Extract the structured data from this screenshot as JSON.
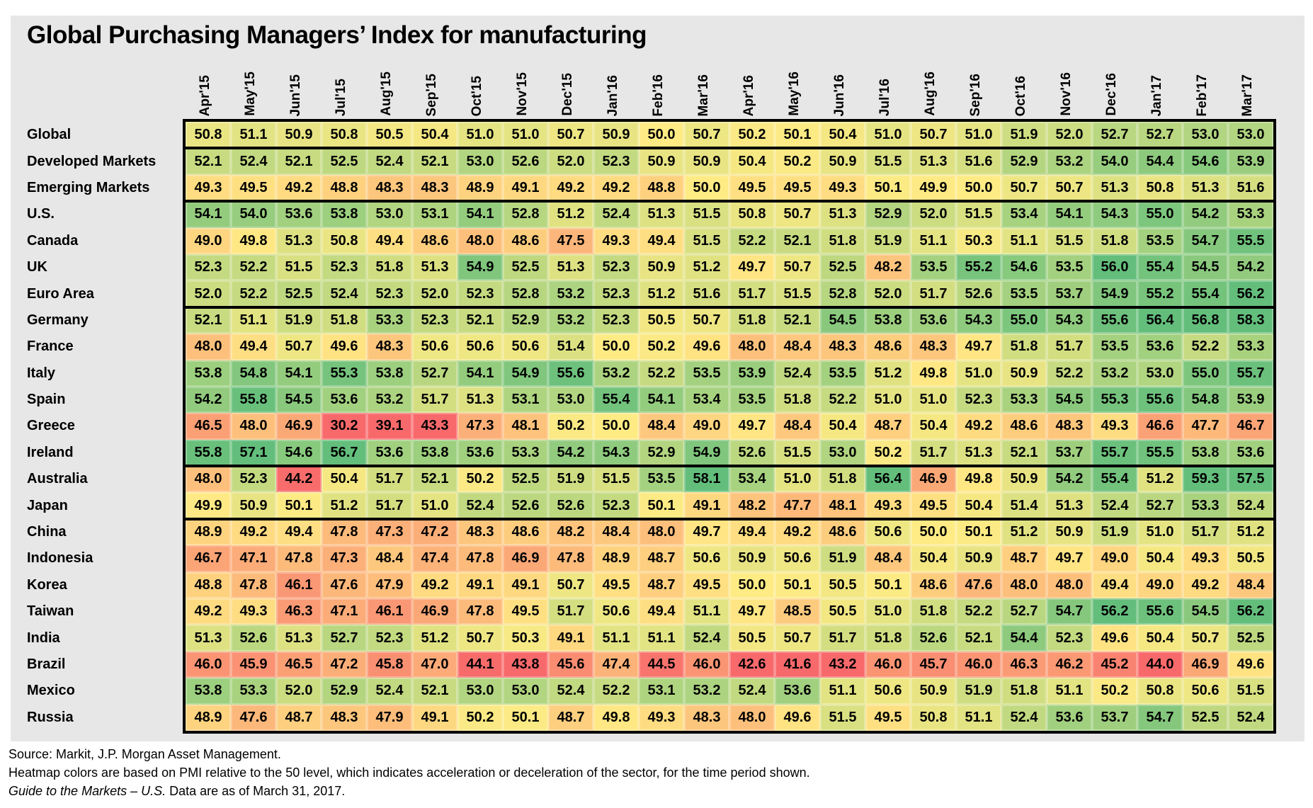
{
  "title": "Global Purchasing Managers’ Index for manufacturing",
  "chart_data": {
    "type": "heatmap",
    "columns": [
      "Apr'15",
      "May'15",
      "Jun'15",
      "Jul'15",
      "Aug'15",
      "Sep'15",
      "Oct'15",
      "Nov'15",
      "Dec'15",
      "Jan'16",
      "Feb'16",
      "Mar'16",
      "Apr'16",
      "May'16",
      "Jun'16",
      "Jul'16",
      "Aug'16",
      "Sep'16",
      "Oct'16",
      "Nov'16",
      "Dec'16",
      "Jan'17",
      "Feb'17",
      "Mar'17"
    ],
    "rows": [
      {
        "label": "Global",
        "values": [
          50.8,
          51.1,
          50.9,
          50.8,
          50.5,
          50.4,
          51.0,
          51.0,
          50.7,
          50.9,
          50.0,
          50.7,
          50.2,
          50.1,
          50.4,
          51.0,
          50.7,
          51.0,
          51.9,
          52.0,
          52.7,
          52.7,
          53.0,
          53.0
        ]
      },
      {
        "label": "Developed Markets",
        "values": [
          52.1,
          52.4,
          52.1,
          52.5,
          52.4,
          52.1,
          53.0,
          52.6,
          52.0,
          52.3,
          50.9,
          50.9,
          50.4,
          50.2,
          50.9,
          51.5,
          51.3,
          51.6,
          52.9,
          53.2,
          54.0,
          54.4,
          54.6,
          53.9
        ]
      },
      {
        "label": "Emerging Markets",
        "values": [
          49.3,
          49.5,
          49.2,
          48.8,
          48.3,
          48.3,
          48.9,
          49.1,
          49.2,
          49.2,
          48.8,
          50.0,
          49.5,
          49.5,
          49.3,
          50.1,
          49.9,
          50.0,
          50.7,
          50.7,
          51.3,
          50.8,
          51.3,
          51.6
        ]
      },
      {
        "label": "U.S.",
        "values": [
          54.1,
          54.0,
          53.6,
          53.8,
          53.0,
          53.1,
          54.1,
          52.8,
          51.2,
          52.4,
          51.3,
          51.5,
          50.8,
          50.7,
          51.3,
          52.9,
          52.0,
          51.5,
          53.4,
          54.1,
          54.3,
          55.0,
          54.2,
          53.3
        ]
      },
      {
        "label": "Canada",
        "values": [
          49.0,
          49.8,
          51.3,
          50.8,
          49.4,
          48.6,
          48.0,
          48.6,
          47.5,
          49.3,
          49.4,
          51.5,
          52.2,
          52.1,
          51.8,
          51.9,
          51.1,
          50.3,
          51.1,
          51.5,
          51.8,
          53.5,
          54.7,
          55.5
        ]
      },
      {
        "label": "UK",
        "values": [
          52.3,
          52.2,
          51.5,
          52.3,
          51.8,
          51.3,
          54.9,
          52.5,
          51.3,
          52.3,
          50.9,
          51.2,
          49.7,
          50.7,
          52.5,
          48.2,
          53.5,
          55.2,
          54.6,
          53.5,
          56.0,
          55.4,
          54.5,
          54.2
        ]
      },
      {
        "label": "Euro Area",
        "values": [
          52.0,
          52.2,
          52.5,
          52.4,
          52.3,
          52.0,
          52.3,
          52.8,
          53.2,
          52.3,
          51.2,
          51.6,
          51.7,
          51.5,
          52.8,
          52.0,
          51.7,
          52.6,
          53.5,
          53.7,
          54.9,
          55.2,
          55.4,
          56.2
        ]
      },
      {
        "label": "Germany",
        "values": [
          52.1,
          51.1,
          51.9,
          51.8,
          53.3,
          52.3,
          52.1,
          52.9,
          53.2,
          52.3,
          50.5,
          50.7,
          51.8,
          52.1,
          54.5,
          53.8,
          53.6,
          54.3,
          55.0,
          54.3,
          55.6,
          56.4,
          56.8,
          58.3
        ]
      },
      {
        "label": "France",
        "values": [
          48.0,
          49.4,
          50.7,
          49.6,
          48.3,
          50.6,
          50.6,
          50.6,
          51.4,
          50.0,
          50.2,
          49.6,
          48.0,
          48.4,
          48.3,
          48.6,
          48.3,
          49.7,
          51.8,
          51.7,
          53.5,
          53.6,
          52.2,
          53.3
        ]
      },
      {
        "label": "Italy",
        "values": [
          53.8,
          54.8,
          54.1,
          55.3,
          53.8,
          52.7,
          54.1,
          54.9,
          55.6,
          53.2,
          52.2,
          53.5,
          53.9,
          52.4,
          53.5,
          51.2,
          49.8,
          51.0,
          50.9,
          52.2,
          53.2,
          53.0,
          55.0,
          55.7
        ]
      },
      {
        "label": "Spain",
        "values": [
          54.2,
          55.8,
          54.5,
          53.6,
          53.2,
          51.7,
          51.3,
          53.1,
          53.0,
          55.4,
          54.1,
          53.4,
          53.5,
          51.8,
          52.2,
          51.0,
          51.0,
          52.3,
          53.3,
          54.5,
          55.3,
          55.6,
          54.8,
          53.9
        ]
      },
      {
        "label": "Greece",
        "values": [
          46.5,
          48.0,
          46.9,
          30.2,
          39.1,
          43.3,
          47.3,
          48.1,
          50.2,
          50.0,
          48.4,
          49.0,
          49.7,
          48.4,
          50.4,
          48.7,
          50.4,
          49.2,
          48.6,
          48.3,
          49.3,
          46.6,
          47.7,
          46.7
        ]
      },
      {
        "label": "Ireland",
        "values": [
          55.8,
          57.1,
          54.6,
          56.7,
          53.6,
          53.8,
          53.6,
          53.3,
          54.2,
          54.3,
          52.9,
          54.9,
          52.6,
          51.5,
          53.0,
          50.2,
          51.7,
          51.3,
          52.1,
          53.7,
          55.7,
          55.5,
          53.8,
          53.6
        ]
      },
      {
        "label": "Australia",
        "values": [
          48.0,
          52.3,
          44.2,
          50.4,
          51.7,
          52.1,
          50.2,
          52.5,
          51.9,
          51.5,
          53.5,
          58.1,
          53.4,
          51.0,
          51.8,
          56.4,
          46.9,
          49.8,
          50.9,
          54.2,
          55.4,
          51.2,
          59.3,
          57.5
        ]
      },
      {
        "label": "Japan",
        "values": [
          49.9,
          50.9,
          50.1,
          51.2,
          51.7,
          51.0,
          52.4,
          52.6,
          52.6,
          52.3,
          50.1,
          49.1,
          48.2,
          47.7,
          48.1,
          49.3,
          49.5,
          50.4,
          51.4,
          51.3,
          52.4,
          52.7,
          53.3,
          52.4
        ]
      },
      {
        "label": "China",
        "values": [
          48.9,
          49.2,
          49.4,
          47.8,
          47.3,
          47.2,
          48.3,
          48.6,
          48.2,
          48.4,
          48.0,
          49.7,
          49.4,
          49.2,
          48.6,
          50.6,
          50.0,
          50.1,
          51.2,
          50.9,
          51.9,
          51.0,
          51.7,
          51.2
        ]
      },
      {
        "label": "Indonesia",
        "values": [
          46.7,
          47.1,
          47.8,
          47.3,
          48.4,
          47.4,
          47.8,
          46.9,
          47.8,
          48.9,
          48.7,
          50.6,
          50.9,
          50.6,
          51.9,
          48.4,
          50.4,
          50.9,
          48.7,
          49.7,
          49.0,
          50.4,
          49.3,
          50.5
        ]
      },
      {
        "label": "Korea",
        "values": [
          48.8,
          47.8,
          46.1,
          47.6,
          47.9,
          49.2,
          49.1,
          49.1,
          50.7,
          49.5,
          48.7,
          49.5,
          50.0,
          50.1,
          50.5,
          50.1,
          48.6,
          47.6,
          48.0,
          48.0,
          49.4,
          49.0,
          49.2,
          48.4
        ]
      },
      {
        "label": "Taiwan",
        "values": [
          49.2,
          49.3,
          46.3,
          47.1,
          46.1,
          46.9,
          47.8,
          49.5,
          51.7,
          50.6,
          49.4,
          51.1,
          49.7,
          48.5,
          50.5,
          51.0,
          51.8,
          52.2,
          52.7,
          54.7,
          56.2,
          55.6,
          54.5,
          56.2
        ]
      },
      {
        "label": "India",
        "values": [
          51.3,
          52.6,
          51.3,
          52.7,
          52.3,
          51.2,
          50.7,
          50.3,
          49.1,
          51.1,
          51.1,
          52.4,
          50.5,
          50.7,
          51.7,
          51.8,
          52.6,
          52.1,
          54.4,
          52.3,
          49.6,
          50.4,
          50.7,
          52.5
        ]
      },
      {
        "label": "Brazil",
        "values": [
          46.0,
          45.9,
          46.5,
          47.2,
          45.8,
          47.0,
          44.1,
          43.8,
          45.6,
          47.4,
          44.5,
          46.0,
          42.6,
          41.6,
          43.2,
          46.0,
          45.7,
          46.0,
          46.3,
          46.2,
          45.2,
          44.0,
          46.9,
          49.6
        ]
      },
      {
        "label": "Mexico",
        "values": [
          53.8,
          53.3,
          52.0,
          52.9,
          52.4,
          52.1,
          53.0,
          53.0,
          52.4,
          52.2,
          53.1,
          53.2,
          52.4,
          53.6,
          51.1,
          50.6,
          50.9,
          51.9,
          51.8,
          51.1,
          50.2,
          50.8,
          50.6,
          51.5
        ]
      },
      {
        "label": "Russia",
        "values": [
          48.9,
          47.6,
          48.7,
          48.3,
          47.9,
          49.1,
          50.2,
          50.1,
          48.7,
          49.8,
          49.3,
          48.3,
          48.0,
          49.6,
          51.5,
          49.5,
          50.8,
          51.1,
          52.4,
          53.6,
          53.7,
          54.7,
          52.5,
          52.4
        ]
      }
    ],
    "group_breaks_after_rows": [
      0,
      2,
      6,
      12,
      14
    ],
    "colorscale": {
      "low_color": "#F8696B",
      "mid_color": "#FFEB84",
      "high_color": "#63BE7B",
      "midpoint": 50,
      "clamp_span": 6
    }
  },
  "footer": {
    "source_line": "Source: Markit, J.P. Morgan Asset Management.",
    "heatmap_note": "Heatmap colors are based on PMI relative to the 50 level, which indicates acceleration or deceleration of the sector, for the time period shown.",
    "gtm_italic": "Guide to the Markets – U.S.",
    "gtm_rest": " Data are as of March 31, 2017."
  }
}
